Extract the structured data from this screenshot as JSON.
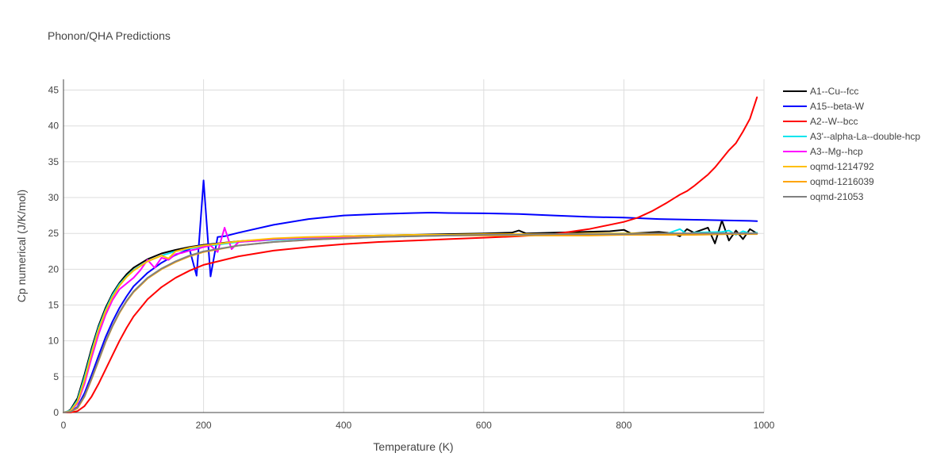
{
  "chart_data": {
    "type": "line",
    "title": "Phonon/QHA Predictions",
    "xlabel": "Temperature (K)",
    "ylabel": "Cp numerical (J/K/mol)",
    "xlim": [
      0,
      1000
    ],
    "ylim": [
      0,
      46.5
    ],
    "xticks": [
      0,
      200,
      400,
      600,
      800,
      1000
    ],
    "yticks": [
      0,
      5,
      10,
      15,
      20,
      25,
      30,
      35,
      40,
      45
    ],
    "grid": true,
    "legend_position": "right",
    "series": [
      {
        "name": "A1--Cu--fcc",
        "color": "#000000",
        "x": [
          0,
          5,
          10,
          20,
          30,
          40,
          50,
          60,
          70,
          80,
          90,
          100,
          120,
          140,
          160,
          180,
          200,
          250,
          300,
          350,
          400,
          450,
          500,
          550,
          600,
          640,
          650,
          660,
          700,
          740,
          780,
          800,
          810,
          850,
          870,
          880,
          890,
          900,
          920,
          930,
          940,
          950,
          960,
          970,
          980,
          990
        ],
        "y": [
          0,
          0.1,
          0.4,
          2.0,
          5.3,
          8.9,
          12.1,
          14.6,
          16.6,
          18.1,
          19.3,
          20.2,
          21.4,
          22.2,
          22.7,
          23.1,
          23.4,
          23.9,
          24.2,
          24.4,
          24.6,
          24.7,
          24.8,
          24.9,
          25.0,
          25.1,
          25.4,
          25.0,
          25.1,
          25.2,
          25.3,
          25.5,
          25.0,
          25.2,
          25.0,
          24.6,
          25.6,
          25.1,
          25.8,
          23.6,
          26.8,
          24.0,
          25.4,
          24.2,
          25.6,
          25.0
        ]
      },
      {
        "name": "A15--beta-W",
        "color": "#0000ff",
        "x": [
          0,
          10,
          20,
          30,
          40,
          50,
          60,
          70,
          80,
          90,
          100,
          120,
          140,
          160,
          180,
          190,
          200,
          210,
          220,
          230,
          250,
          300,
          350,
          400,
          450,
          500,
          525,
          550,
          600,
          650,
          700,
          750,
          800,
          850,
          900,
          950,
          980,
          990
        ],
        "y": [
          0,
          0.1,
          0.8,
          2.7,
          5.2,
          7.9,
          10.5,
          12.7,
          14.6,
          16.2,
          17.6,
          19.5,
          20.9,
          22.0,
          22.8,
          19.1,
          32.4,
          19.0,
          24.5,
          24.6,
          25.1,
          26.2,
          27.0,
          27.5,
          27.7,
          27.85,
          27.9,
          27.85,
          27.8,
          27.7,
          27.5,
          27.3,
          27.2,
          27.0,
          26.9,
          26.8,
          26.75,
          26.7
        ]
      },
      {
        "name": "A2--W--bcc",
        "color": "#ff0000",
        "x": [
          0,
          10,
          20,
          30,
          40,
          50,
          60,
          70,
          80,
          90,
          100,
          120,
          140,
          160,
          180,
          200,
          250,
          300,
          350,
          400,
          450,
          500,
          550,
          600,
          650,
          700,
          750,
          800,
          820,
          840,
          860,
          870,
          880,
          890,
          900,
          910,
          920,
          930,
          940,
          950,
          960,
          970,
          980,
          990
        ],
        "y": [
          0,
          0,
          0.2,
          0.9,
          2.2,
          4.0,
          6.0,
          8.0,
          10.0,
          11.8,
          13.4,
          15.8,
          17.5,
          18.8,
          19.8,
          20.6,
          21.8,
          22.6,
          23.1,
          23.5,
          23.8,
          24.0,
          24.2,
          24.4,
          24.6,
          24.9,
          25.6,
          26.6,
          27.2,
          28.1,
          29.2,
          29.8,
          30.4,
          30.9,
          31.6,
          32.4,
          33.2,
          34.2,
          35.4,
          36.6,
          37.6,
          39.2,
          41.0,
          44.0
        ]
      },
      {
        "name": "A3'--alpha-La--double-hcp",
        "color": "#00e5ee",
        "x": [
          0,
          10,
          20,
          30,
          40,
          50,
          60,
          70,
          80,
          90,
          100,
          120,
          140,
          160,
          180,
          200,
          250,
          300,
          350,
          400,
          450,
          500,
          550,
          600,
          700,
          800,
          860,
          880,
          890,
          900,
          940,
          950,
          960,
          970,
          980,
          990
        ],
        "y": [
          0,
          0.3,
          1.7,
          4.9,
          8.5,
          11.8,
          14.3,
          16.4,
          17.9,
          19.0,
          19.9,
          21.1,
          21.9,
          22.5,
          22.9,
          23.2,
          23.8,
          24.1,
          24.3,
          24.4,
          24.5,
          24.6,
          24.7,
          24.8,
          24.9,
          25.0,
          24.9,
          25.6,
          24.9,
          25.1,
          25.2,
          25.4,
          24.8,
          25.3,
          25.0,
          25.1
        ]
      },
      {
        "name": "A3--Mg--hcp",
        "color": "#ff00ff",
        "x": [
          0,
          10,
          20,
          30,
          40,
          50,
          60,
          70,
          80,
          90,
          100,
          110,
          120,
          130,
          140,
          150,
          160,
          170,
          180,
          190,
          200,
          210,
          220,
          230,
          240,
          250,
          280,
          300,
          350,
          400,
          450,
          500,
          550,
          600,
          700,
          800,
          900,
          990
        ],
        "y": [
          0,
          0.2,
          1.3,
          4.0,
          7.6,
          10.9,
          13.6,
          15.7,
          17.2,
          18.0,
          18.8,
          19.9,
          21.3,
          20.2,
          21.6,
          21.3,
          22.1,
          22.3,
          22.6,
          22.8,
          23.1,
          23.3,
          22.4,
          25.8,
          22.8,
          23.8,
          24.0,
          24.2,
          24.4,
          24.5,
          24.6,
          24.7,
          24.8,
          24.8,
          24.9,
          24.9,
          25.0,
          25.0
        ]
      },
      {
        "name": "oqmd-1214792",
        "color": "#ffbf00",
        "x": [
          0,
          10,
          20,
          30,
          40,
          50,
          60,
          70,
          80,
          90,
          100,
          120,
          140,
          150,
          160,
          180,
          200,
          250,
          300,
          350,
          400,
          450,
          500,
          550,
          600,
          650,
          700,
          750,
          800,
          850,
          900,
          950,
          990
        ],
        "y": [
          0,
          0.2,
          1.5,
          4.5,
          8.2,
          11.5,
          14.1,
          16.1,
          17.7,
          18.9,
          19.8,
          21.1,
          21.9,
          21.5,
          22.5,
          23.0,
          23.3,
          23.9,
          24.3,
          24.5,
          24.6,
          24.7,
          24.8,
          24.8,
          24.9,
          24.9,
          24.9,
          25.0,
          25.0,
          25.0,
          25.0,
          25.0,
          25.0
        ]
      },
      {
        "name": "oqmd-1216039",
        "color": "#ffa500",
        "x": [
          0,
          10,
          20,
          30,
          40,
          50,
          60,
          70,
          80,
          90,
          100,
          120,
          140,
          160,
          180,
          200,
          250,
          300,
          350,
          400,
          450,
          500,
          550,
          600,
          650,
          700,
          750,
          800,
          850,
          900,
          950,
          990
        ],
        "y": [
          0,
          0.1,
          0.6,
          2.2,
          4.6,
          7.2,
          9.8,
          12.0,
          13.9,
          15.5,
          16.8,
          18.7,
          20.0,
          21.0,
          21.8,
          22.4,
          23.3,
          23.8,
          24.1,
          24.3,
          24.5,
          24.6,
          24.7,
          24.7,
          24.7,
          24.7,
          24.7,
          24.8,
          24.8,
          24.8,
          24.9,
          24.9
        ]
      },
      {
        "name": "oqmd-21053",
        "color": "#808080",
        "x": [
          0,
          10,
          20,
          30,
          40,
          50,
          60,
          70,
          80,
          90,
          100,
          120,
          140,
          160,
          180,
          200,
          250,
          300,
          350,
          400,
          450,
          500,
          550,
          600,
          650,
          700,
          750,
          800,
          850,
          900,
          950,
          990
        ],
        "y": [
          0,
          0.1,
          0.7,
          2.3,
          4.7,
          7.3,
          9.9,
          12.1,
          14.0,
          15.6,
          16.9,
          18.8,
          20.1,
          21.1,
          21.9,
          22.5,
          23.3,
          23.8,
          24.1,
          24.3,
          24.5,
          24.6,
          24.7,
          24.8,
          24.8,
          24.9,
          24.9,
          24.9,
          25.0,
          25.0,
          25.0,
          25.0
        ]
      }
    ]
  }
}
